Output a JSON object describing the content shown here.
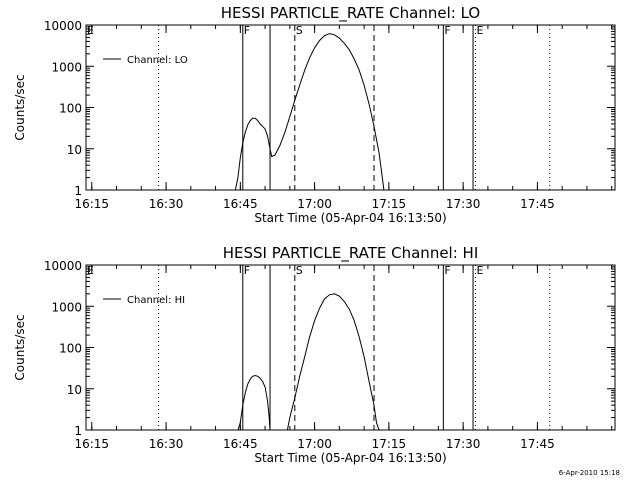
{
  "footer": {
    "timestamp": "6-Apr-2010 15:18"
  },
  "chart_data": [
    {
      "type": "line",
      "title": "HESSI PARTICLE_RATE Channel: LO",
      "xlabel": "Start Time (05-Apr-04 16:13:50)",
      "ylabel": "Counts/sec",
      "y_scale": "log",
      "ylim": [
        1,
        10000
      ],
      "y_ticks": [
        1,
        10,
        100,
        1000,
        10000
      ],
      "y_tick_labels": [
        "1",
        "10",
        "100",
        "1000",
        "10000"
      ],
      "xlim": [
        "16:13:50",
        "18:00:40"
      ],
      "x_ticks": [
        "16:15",
        "16:30",
        "16:45",
        "17:00",
        "17:15",
        "17:30",
        "17:45"
      ],
      "legend": {
        "entries": [
          "Channel: LO"
        ],
        "position": "top-left"
      },
      "markers": [
        {
          "time": "16:13:50",
          "label": "E",
          "style": "dotted"
        },
        {
          "time": "16:28:30",
          "label": "",
          "style": "dotted"
        },
        {
          "time": "16:45:30",
          "label": "F",
          "style": "solid"
        },
        {
          "time": "16:51:00",
          "label": "",
          "style": "solid"
        },
        {
          "time": "16:56:00",
          "label": "S",
          "style": "dashed"
        },
        {
          "time": "17:12:00",
          "label": "",
          "style": "dashed"
        },
        {
          "time": "17:26:00",
          "label": "F",
          "style": "solid"
        },
        {
          "time": "17:32:00",
          "label": "",
          "style": "solid"
        },
        {
          "time": "17:32:30",
          "label": "E",
          "style": "dotted"
        },
        {
          "time": "17:47:30",
          "label": "",
          "style": "dotted"
        }
      ],
      "segments": [
        [
          [
            "16:44:00",
            1
          ],
          [
            "16:44:30",
            2
          ],
          [
            "16:45:00",
            6
          ],
          [
            "16:45:30",
            14
          ],
          [
            "16:46:00",
            25
          ],
          [
            "16:46:30",
            38
          ],
          [
            "16:47:00",
            48
          ],
          [
            "16:47:30",
            55
          ],
          [
            "16:48:00",
            55
          ],
          [
            "16:48:30",
            48
          ],
          [
            "16:49:00",
            40
          ],
          [
            "16:49:30",
            35
          ],
          [
            "16:50:00",
            30
          ],
          [
            "16:50:30",
            20
          ],
          [
            "16:51:00",
            10
          ],
          [
            "16:51:20",
            6.5
          ],
          [
            "16:52:00",
            7
          ],
          [
            "16:53:00",
            12
          ],
          [
            "16:54:00",
            25
          ],
          [
            "16:55:00",
            60
          ],
          [
            "16:56:00",
            150
          ],
          [
            "16:57:00",
            350
          ],
          [
            "16:58:00",
            800
          ],
          [
            "16:59:00",
            1600
          ],
          [
            "17:00:00",
            2800
          ],
          [
            "17:01:00",
            4200
          ],
          [
            "17:02:00",
            5500
          ],
          [
            "17:03:00",
            6200
          ],
          [
            "17:04:00",
            5800
          ],
          [
            "17:05:00",
            4800
          ],
          [
            "17:06:00",
            3600
          ],
          [
            "17:07:00",
            2500
          ],
          [
            "17:08:00",
            1500
          ],
          [
            "17:09:00",
            800
          ],
          [
            "17:10:00",
            350
          ],
          [
            "17:11:00",
            120
          ],
          [
            "17:12:00",
            35
          ],
          [
            "17:13:00",
            8
          ],
          [
            "17:13:30",
            3
          ],
          [
            "17:14:00",
            1
          ]
        ]
      ]
    },
    {
      "type": "line",
      "title": "HESSI PARTICLE_RATE Channel: HI",
      "xlabel": "Start Time (05-Apr-04 16:13:50)",
      "ylabel": "Counts/sec",
      "y_scale": "log",
      "ylim": [
        1,
        10000
      ],
      "y_ticks": [
        1,
        10,
        100,
        1000,
        10000
      ],
      "y_tick_labels": [
        "1",
        "10",
        "100",
        "1000",
        "10000"
      ],
      "xlim": [
        "16:13:50",
        "18:00:40"
      ],
      "x_ticks": [
        "16:15",
        "16:30",
        "16:45",
        "17:00",
        "17:15",
        "17:30",
        "17:45"
      ],
      "legend": {
        "entries": [
          "Channel: HI"
        ],
        "position": "top-left"
      },
      "markers": [
        {
          "time": "16:13:50",
          "label": "E",
          "style": "dotted"
        },
        {
          "time": "16:28:30",
          "label": "",
          "style": "dotted"
        },
        {
          "time": "16:45:30",
          "label": "F",
          "style": "solid"
        },
        {
          "time": "16:51:00",
          "label": "",
          "style": "solid"
        },
        {
          "time": "16:56:00",
          "label": "S",
          "style": "dashed"
        },
        {
          "time": "17:12:00",
          "label": "",
          "style": "dashed"
        },
        {
          "time": "17:26:00",
          "label": "F",
          "style": "solid"
        },
        {
          "time": "17:32:00",
          "label": "",
          "style": "solid"
        },
        {
          "time": "17:32:30",
          "label": "E",
          "style": "dotted"
        },
        {
          "time": "17:47:30",
          "label": "",
          "style": "dotted"
        }
      ],
      "segments": [
        [
          [
            "16:44:30",
            1
          ],
          [
            "16:45:00",
            1.5
          ],
          [
            "16:45:30",
            4
          ],
          [
            "16:46:00",
            8
          ],
          [
            "16:46:30",
            13
          ],
          [
            "16:47:00",
            17
          ],
          [
            "16:47:30",
            20
          ],
          [
            "16:48:00",
            21
          ],
          [
            "16:48:30",
            20
          ],
          [
            "16:49:00",
            18
          ],
          [
            "16:49:30",
            15
          ],
          [
            "16:50:00",
            11
          ],
          [
            "16:50:30",
            5
          ],
          [
            "16:50:50",
            2
          ],
          [
            "16:51:00",
            1
          ]
        ],
        [
          [
            "16:54:30",
            1
          ],
          [
            "16:55:00",
            2
          ],
          [
            "16:56:00",
            6
          ],
          [
            "16:57:00",
            20
          ],
          [
            "16:58:00",
            60
          ],
          [
            "16:59:00",
            180
          ],
          [
            "17:00:00",
            450
          ],
          [
            "17:01:00",
            900
          ],
          [
            "17:02:00",
            1500
          ],
          [
            "17:03:00",
            1900
          ],
          [
            "17:04:00",
            2000
          ],
          [
            "17:05:00",
            1750
          ],
          [
            "17:06:00",
            1300
          ],
          [
            "17:07:00",
            850
          ],
          [
            "17:08:00",
            450
          ],
          [
            "17:09:00",
            180
          ],
          [
            "17:10:00",
            60
          ],
          [
            "17:11:00",
            15
          ],
          [
            "17:12:00",
            4
          ],
          [
            "17:12:30",
            1.5
          ],
          [
            "17:13:00",
            1
          ]
        ]
      ]
    }
  ]
}
